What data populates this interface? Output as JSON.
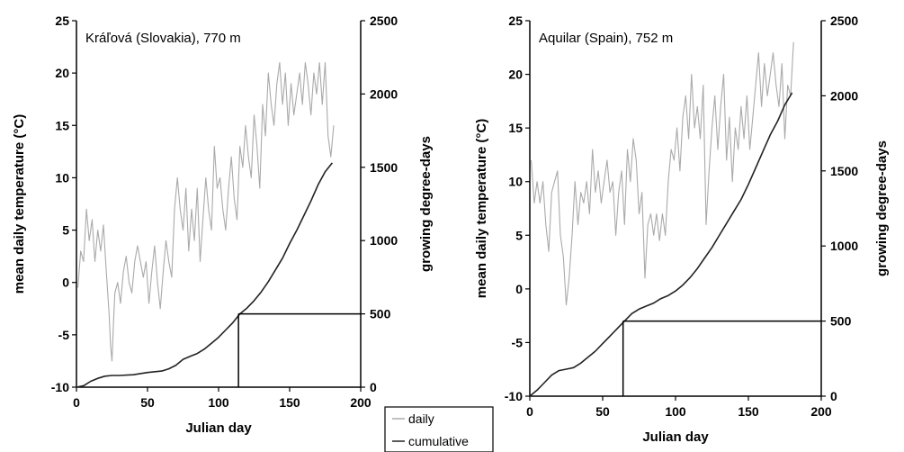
{
  "chart_data": [
    {
      "type": "line",
      "title": "Kráľová (Slovakia), 770 m",
      "xlabel": "Julian day",
      "ylabel_left": "mean daily temperature (°C)",
      "ylabel_right": "growing degree-days",
      "xlim": [
        0,
        200
      ],
      "ylim_left": [
        -10,
        25
      ],
      "ylim_right": [
        0,
        2500
      ],
      "x_ticks": [
        "0",
        "50",
        "100",
        "150",
        "200"
      ],
      "y_left_ticks": [
        "-10",
        "-5",
        "0",
        "5",
        "10",
        "15",
        "20",
        "25"
      ],
      "y_right_ticks": [
        "0",
        "500",
        "1000",
        "1500",
        "2000",
        "2500"
      ],
      "series": [
        {
          "name": "daily",
          "axis": "left",
          "color": "#aaaaaa",
          "x": [
            1,
            3,
            5,
            7,
            9,
            11,
            13,
            15,
            17,
            19,
            21,
            23,
            24,
            25,
            26,
            27,
            29,
            31,
            33,
            35,
            37,
            39,
            41,
            43,
            45,
            47,
            49,
            51,
            53,
            55,
            57,
            59,
            61,
            63,
            65,
            67,
            69,
            71,
            73,
            75,
            77,
            79,
            81,
            83,
            85,
            87,
            89,
            91,
            93,
            95,
            97,
            99,
            101,
            103,
            105,
            107,
            109,
            111,
            113,
            115,
            117,
            119,
            121,
            123,
            125,
            127,
            129,
            131,
            133,
            135,
            137,
            139,
            141,
            143,
            145,
            147,
            149,
            151,
            153,
            155,
            157,
            159,
            161,
            163,
            165,
            167,
            169,
            171,
            173,
            175,
            177,
            179,
            181
          ],
          "y": [
            -0.5,
            3,
            2,
            7,
            4,
            6,
            2,
            5,
            3,
            5.5,
            1,
            -3,
            -6,
            -7.5,
            -4,
            -1,
            0,
            -2,
            1,
            2.5,
            0,
            -1,
            2,
            3.5,
            2,
            0.5,
            2,
            -2,
            1,
            3.5,
            0,
            -2.5,
            1,
            4,
            2,
            0.5,
            7,
            10,
            7,
            5,
            9,
            3,
            7,
            4,
            9,
            2,
            6,
            10,
            7,
            5,
            13,
            9,
            10,
            7,
            5,
            9,
            12,
            8,
            6,
            13,
            11,
            15,
            12,
            10,
            16,
            13,
            9,
            17,
            14,
            20,
            17,
            15,
            19,
            21,
            17,
            20,
            15,
            19,
            16,
            18,
            20,
            17,
            21,
            19,
            16,
            20,
            18,
            21,
            17,
            21,
            14,
            12,
            15
          ]
        },
        {
          "name": "cumulative",
          "axis": "right",
          "color": "#222222",
          "x": [
            0,
            5,
            10,
            15,
            20,
            25,
            30,
            40,
            50,
            60,
            65,
            70,
            75,
            80,
            85,
            90,
            95,
            100,
            105,
            110,
            115,
            120,
            125,
            130,
            135,
            140,
            145,
            150,
            155,
            160,
            165,
            170,
            175,
            180
          ],
          "y": [
            0,
            10,
            40,
            60,
            75,
            80,
            80,
            85,
            100,
            110,
            125,
            150,
            190,
            210,
            230,
            260,
            300,
            340,
            390,
            440,
            500,
            540,
            590,
            650,
            720,
            800,
            880,
            980,
            1070,
            1170,
            1270,
            1380,
            1470,
            1530
          ]
        }
      ],
      "marker": {
        "x": 114,
        "y_right": 500
      }
    },
    {
      "type": "line",
      "title": "Aquilar (Spain), 752 m",
      "xlabel": "Julian day",
      "ylabel_left": "mean daily temperature (°C)",
      "ylabel_right": "growing degree-days",
      "xlim": [
        0,
        200
      ],
      "ylim_left": [
        -10,
        25
      ],
      "ylim_right": [
        0,
        2500
      ],
      "x_ticks": [
        "0",
        "50",
        "100",
        "150",
        "200"
      ],
      "y_left_ticks": [
        "-10",
        "-5",
        "0",
        "5",
        "10",
        "15",
        "20",
        "25"
      ],
      "y_right_ticks": [
        "0",
        "500",
        "1000",
        "1500",
        "2000",
        "2500"
      ],
      "series": [
        {
          "name": "daily",
          "axis": "left",
          "color": "#aaaaaa",
          "x": [
            1,
            3,
            5,
            7,
            9,
            11,
            13,
            15,
            17,
            19,
            21,
            23,
            25,
            27,
            29,
            31,
            33,
            35,
            37,
            39,
            41,
            43,
            45,
            47,
            49,
            51,
            53,
            55,
            57,
            59,
            61,
            63,
            65,
            67,
            69,
            71,
            73,
            75,
            77,
            79,
            81,
            83,
            85,
            87,
            89,
            91,
            93,
            95,
            97,
            99,
            101,
            103,
            105,
            107,
            109,
            111,
            113,
            115,
            117,
            119,
            121,
            123,
            125,
            127,
            129,
            131,
            133,
            135,
            137,
            139,
            141,
            143,
            145,
            147,
            149,
            151,
            153,
            155,
            157,
            159,
            161,
            163,
            165,
            167,
            169,
            171,
            173,
            175,
            177,
            179,
            181
          ],
          "y": [
            12,
            8,
            10,
            8,
            10,
            6,
            3.5,
            9,
            10,
            11,
            5,
            3,
            -1.5,
            1,
            5,
            10,
            6,
            9,
            8,
            10,
            7,
            13,
            9,
            11,
            8,
            10,
            12,
            9,
            10,
            5,
            9,
            11,
            6,
            13,
            10,
            14,
            12,
            7,
            9,
            1,
            6,
            7,
            5,
            7,
            4.5,
            7,
            5,
            10,
            13,
            12,
            15,
            11,
            16,
            18,
            14,
            20,
            15,
            17,
            14,
            19,
            6,
            11,
            15,
            18,
            13,
            17,
            20,
            12,
            16,
            10,
            15,
            13,
            17,
            14,
            18,
            13,
            16,
            19,
            22,
            17,
            21,
            18,
            20,
            22,
            19,
            17,
            21,
            14,
            19,
            18,
            23
          ]
        },
        {
          "name": "cumulative",
          "axis": "right",
          "color": "#222222",
          "x": [
            0,
            5,
            10,
            15,
            20,
            25,
            30,
            35,
            40,
            45,
            50,
            55,
            60,
            65,
            70,
            75,
            80,
            85,
            90,
            95,
            100,
            105,
            110,
            115,
            120,
            125,
            130,
            135,
            140,
            145,
            150,
            155,
            160,
            165,
            170,
            175,
            180
          ],
          "y": [
            0,
            40,
            90,
            140,
            170,
            180,
            190,
            220,
            260,
            300,
            350,
            400,
            450,
            500,
            550,
            580,
            600,
            620,
            650,
            670,
            700,
            740,
            790,
            850,
            920,
            990,
            1070,
            1150,
            1230,
            1310,
            1410,
            1520,
            1630,
            1740,
            1830,
            1940,
            2020
          ]
        }
      ],
      "marker": {
        "x": 64,
        "y_right": 500
      }
    }
  ],
  "legend": {
    "items": [
      {
        "label": "daily",
        "color": "#aaaaaa"
      },
      {
        "label": "cumulative",
        "color": "#222222"
      }
    ]
  }
}
